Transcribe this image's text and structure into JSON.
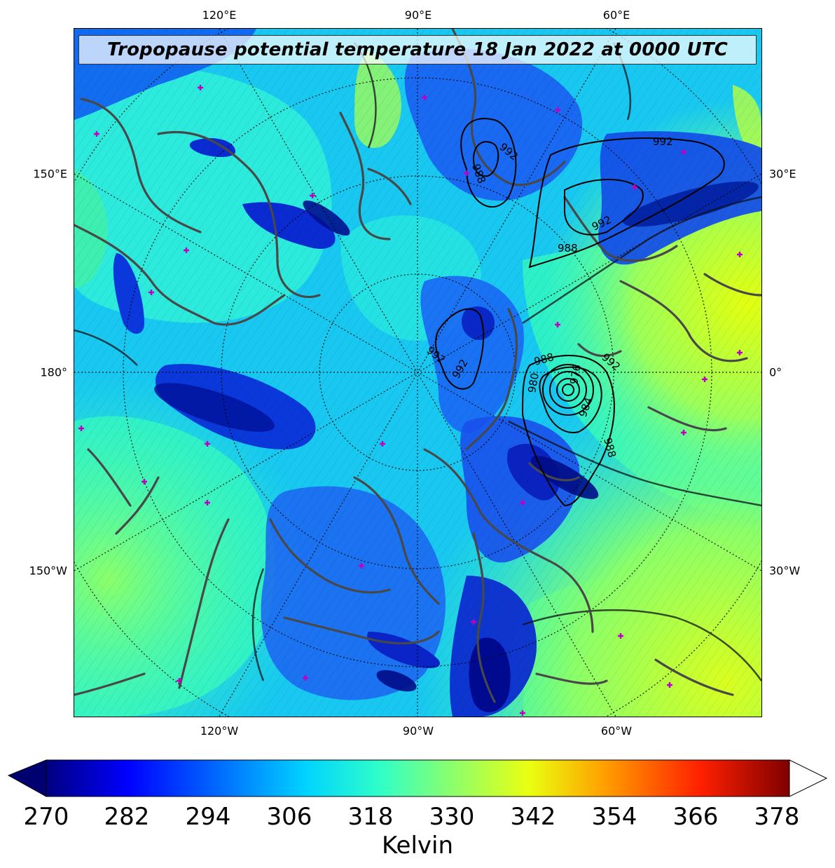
{
  "title": "Tropopause potential temperature 18 Jan 2022 at 0000 UTC",
  "axes": {
    "top": [
      "120°E",
      "90°E",
      "60°E"
    ],
    "bottom": [
      "120°W",
      "90°W",
      "60°W"
    ],
    "left": [
      "150°E",
      "180°",
      "150°W"
    ],
    "right": [
      "30°E",
      "0°",
      "30°W"
    ]
  },
  "pressure_contour_labels": [
    "992",
    "988",
    "992",
    "992",
    "988",
    "992",
    "992",
    "988",
    "980",
    "976",
    "984",
    "988",
    "992"
  ],
  "colorbar": {
    "unit": "Kelvin",
    "ticks": [
      "270",
      "282",
      "294",
      "306",
      "318",
      "330",
      "342",
      "354",
      "366",
      "378"
    ],
    "colormap": "jet",
    "range": [
      270,
      381
    ],
    "extend": "both"
  },
  "colors": {
    "coastline": "#484848",
    "marker": "#c000c0",
    "isobar": "#000000"
  }
}
